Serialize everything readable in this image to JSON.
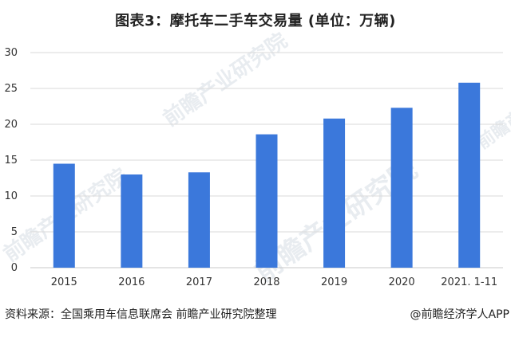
{
  "title": "图表3：摩托车二手车交易量 (单位：万辆)",
  "source_left": "资料来源：全国乘用车信息联席会 前瞻产业研究院整理",
  "source_right": "@前瞻经济学人APP",
  "watermark": "前瞻产业研究院",
  "colors": {
    "bar": "#3b78db",
    "grid": "#dadada",
    "axis_text": "#333333"
  },
  "chart_data": {
    "type": "bar",
    "categories": [
      "2015",
      "2016",
      "2017",
      "2018",
      "2019",
      "2020",
      "2021. 1-11"
    ],
    "values": [
      14.5,
      13.0,
      13.3,
      18.6,
      20.8,
      22.3,
      25.8
    ],
    "title": "图表3：摩托车二手车交易量 (单位：万辆)",
    "xlabel": "",
    "ylabel": "",
    "ylim": [
      0,
      30
    ],
    "yticks": [
      0,
      5,
      10,
      15,
      20,
      25,
      30
    ],
    "grid": true,
    "legend": "none"
  }
}
